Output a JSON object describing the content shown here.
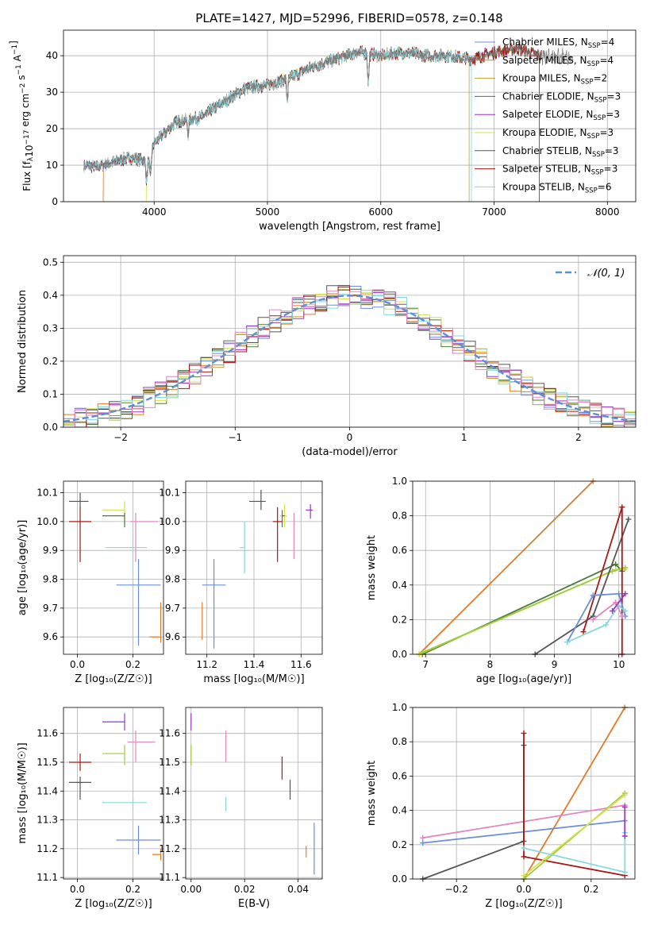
{
  "figure_title": "PLATE=1427, MJD=52996, FIBERID=0578, z=0.148",
  "colors": {
    "Chabrier MILES": "#6a8fd8",
    "Salpeter MILES": "#e07b2a",
    "Kroupa MILES": "#c5a028",
    "Chabrier ELODIE": "#4c7a3a",
    "Salpeter ELODIE": "#9a35c8",
    "Kroupa ELODIE": "#d6e04a",
    "Chabrier STELIB": "#555555",
    "Salpeter STELIB": "#a81818",
    "Kroupa STELIB": "#86d8e0",
    "Kroupa ELODIE alt": "#9ccc3a",
    "Kroupa STELIB alt": "#e088c0"
  },
  "chart_data": [
    {
      "id": "spectrum",
      "type": "line",
      "title": "PLATE=1427, MJD=52996, FIBERID=0578, z=0.148",
      "xlabel": "wavelength [Angstrom, rest frame]",
      "ylabel": "Flux [f_λ10^-17 erg cm^-2 s^-1 A^-1]",
      "xlim": [
        3200,
        8250
      ],
      "ylim": [
        0,
        47
      ],
      "xticks": [
        4000,
        5000,
        6000,
        7000,
        8000
      ],
      "yticks": [
        0,
        10,
        20,
        30,
        40
      ],
      "legend_position": "top-right",
      "legend": [
        {
          "label": "Chabrier MILES, N",
          "sub": "SSP",
          "suffix": "=4",
          "color": "#6a8fd8"
        },
        {
          "label": "Salpeter MILES, N",
          "sub": "SSP",
          "suffix": "=4",
          "color": "#e07b2a"
        },
        {
          "label": "Kroupa MILES, N",
          "sub": "SSP",
          "suffix": "=2",
          "color": "#c5a028"
        },
        {
          "label": "Chabrier ELODIE, N",
          "sub": "SSP",
          "suffix": "=3",
          "color": "#4c7a3a"
        },
        {
          "label": "Salpeter ELODIE, N",
          "sub": "SSP",
          "suffix": "=3",
          "color": "#9a35c8"
        },
        {
          "label": "Kroupa ELODIE, N",
          "sub": "SSP",
          "suffix": "=3",
          "color": "#d6e04a"
        },
        {
          "label": "Chabrier STELIB, N",
          "sub": "SSP",
          "suffix": "=3",
          "color": "#555555"
        },
        {
          "label": "Salpeter STELIB, N",
          "sub": "SSP",
          "suffix": "=3",
          "color": "#a81818"
        },
        {
          "label": "Kroupa STELIB, N",
          "sub": "SSP",
          "suffix": "=6",
          "color": "#86d8e0"
        }
      ],
      "continuum": [
        [
          3380,
          10
        ],
        [
          3500,
          9.5
        ],
        [
          3650,
          11
        ],
        [
          3800,
          12
        ],
        [
          3950,
          11
        ],
        [
          4000,
          16
        ],
        [
          4200,
          22
        ],
        [
          4400,
          23
        ],
        [
          4600,
          27
        ],
        [
          4800,
          31
        ],
        [
          5000,
          32
        ],
        [
          5200,
          34
        ],
        [
          5400,
          37
        ],
        [
          5600,
          39
        ],
        [
          5800,
          41
        ],
        [
          6000,
          40
        ],
        [
          6200,
          41
        ],
        [
          6400,
          40
        ],
        [
          6600,
          40
        ],
        [
          6800,
          39
        ],
        [
          7000,
          41
        ],
        [
          7200,
          42
        ],
        [
          7400,
          40
        ]
      ],
      "absorption_lines": [
        [
          3933,
          5
        ],
        [
          3968,
          6
        ],
        [
          4300,
          4
        ],
        [
          5175,
          6
        ],
        [
          5890,
          8
        ]
      ],
      "model_cutoffs": [
        [
          3550,
          "#e07b2a"
        ],
        [
          3930,
          "#d6e04a"
        ],
        [
          6780,
          "#c5a028"
        ],
        [
          6800,
          "#86d8e0"
        ],
        [
          7400,
          "#a81818"
        ]
      ]
    },
    {
      "id": "residual_hist",
      "type": "step",
      "xlabel": "(data-model)/error",
      "ylabel": "Normed distribution",
      "xlim": [
        -2.5,
        2.5
      ],
      "ylim": [
        0,
        0.52
      ],
      "xticks": [
        -2,
        -1,
        0,
        1,
        2
      ],
      "yticks": [
        0.0,
        0.1,
        0.2,
        0.3,
        0.4,
        0.5
      ],
      "bin_width": 0.1,
      "legend_position": "top-right",
      "legend_label": "𝒩(0, 1)",
      "normal_color": "#5b8fd6",
      "hist_colors": [
        "#6a8fd8",
        "#e07b2a",
        "#c5a028",
        "#4c7a3a",
        "#9a35c8",
        "#d6e04a",
        "#555555",
        "#a81818",
        "#86d8e0",
        "#e088c0"
      ]
    },
    {
      "id": "age_vs_Z",
      "type": "errorbar",
      "xlabel": "Z [log10(Z/Z☉)]",
      "ylabel": "age [log10(age/yr)]",
      "xlim": [
        -0.05,
        0.31
      ],
      "ylim": [
        9.54,
        10.14
      ],
      "xticks": [
        0.0,
        0.2
      ],
      "yticks": [
        9.6,
        9.7,
        9.8,
        9.9,
        10.0,
        10.1
      ],
      "points": [
        {
          "x": 0.01,
          "y": 10.0,
          "xerr": [
            0.04,
            0.04
          ],
          "yerr": [
            0.14,
            0.05
          ],
          "color": "#a81818"
        },
        {
          "x": 0.01,
          "y": 10.07,
          "xerr": [
            0.04,
            0.03
          ],
          "yerr": [
            0.03,
            0.03
          ],
          "color": "#555555"
        },
        {
          "x": 0.17,
          "y": 10.04,
          "xerr": [
            0.08,
            0.0
          ],
          "yerr": [
            0.03,
            0.03
          ],
          "color": "#d6e04a"
        },
        {
          "x": 0.17,
          "y": 10.02,
          "xerr": [
            0.08,
            0.0
          ],
          "yerr": [
            0.04,
            0.01
          ],
          "color": "#4c7a3a"
        },
        {
          "x": 0.21,
          "y": 10.0,
          "xerr": [
            0.02,
            0.08
          ],
          "yerr": [
            0.14,
            0.03
          ],
          "color": "#e088c0"
        },
        {
          "x": 0.2,
          "y": 9.91,
          "xerr": [
            0.1,
            0.05
          ],
          "yerr": [
            0.09,
            0.09
          ],
          "color": "#86d8e0"
        },
        {
          "x": 0.22,
          "y": 9.78,
          "xerr": [
            0.08,
            0.08
          ],
          "yerr": [
            0.21,
            0.09
          ],
          "color": "#6a8fd8"
        },
        {
          "x": 0.3,
          "y": 9.6,
          "xerr": [
            0.04,
            0.0
          ],
          "yerr": [
            0.02,
            0.12
          ],
          "color": "#e07b2a"
        }
      ]
    },
    {
      "id": "age_vs_mass",
      "type": "errorbar",
      "xlabel": "mass [log10(M/M☉)]",
      "ylabel": "",
      "xlim": [
        11.11,
        11.69
      ],
      "ylim": [
        9.54,
        10.14
      ],
      "xticks": [
        11.2,
        11.4,
        11.6
      ],
      "yticks": [
        9.6,
        9.7,
        9.8,
        9.9,
        10.0,
        10.1
      ],
      "points": [
        {
          "x": 11.43,
          "y": 10.07,
          "xerr": [
            0.05,
            0.02
          ],
          "yerr": [
            0.03,
            0.04
          ],
          "color": "#555555"
        },
        {
          "x": 11.5,
          "y": 10.0,
          "xerr": [
            0.02,
            0.02
          ],
          "yerr": [
            0.14,
            0.05
          ],
          "color": "#a81818"
        },
        {
          "x": 11.53,
          "y": 10.02,
          "xerr": [
            0.02,
            0.01
          ],
          "yerr": [
            0.04,
            0.04
          ],
          "color": "#d6e04a"
        },
        {
          "x": 11.52,
          "y": 10.02,
          "xerr": [
            0.0,
            0.01
          ],
          "yerr": [
            0.04,
            0.02
          ],
          "color": "#4c7a3a"
        },
        {
          "x": 11.64,
          "y": 10.04,
          "xerr": [
            0.02,
            0.01
          ],
          "yerr": [
            0.03,
            0.02
          ],
          "color": "#9a35c8"
        },
        {
          "x": 11.57,
          "y": 9.99,
          "xerr": [
            0.0,
            0.0
          ],
          "yerr": [
            0.12,
            0.04
          ],
          "color": "#e088c0"
        },
        {
          "x": 11.36,
          "y": 9.91,
          "xerr": [
            0.02,
            0.0
          ],
          "yerr": [
            0.09,
            0.09
          ],
          "color": "#86d8e0"
        },
        {
          "x": 11.23,
          "y": 9.78,
          "xerr": [
            0.05,
            0.05
          ],
          "yerr": [
            0.22,
            0.09
          ],
          "color": "#6a8fd8"
        },
        {
          "x": 11.18,
          "y": 9.6,
          "xerr": [
            0.0,
            0.0
          ],
          "yerr": [
            0.01,
            0.12
          ],
          "color": "#e07b2a"
        }
      ]
    },
    {
      "id": "weight_vs_age",
      "type": "line",
      "xlabel": "age [log10(age/yr)]",
      "ylabel": "mass weight",
      "xlim": [
        6.8,
        10.25
      ],
      "ylim": [
        0,
        1.0
      ],
      "xticks": [
        7,
        8,
        9,
        10
      ],
      "yticks": [
        0.0,
        0.2,
        0.4,
        0.6,
        0.8,
        1.0
      ],
      "series": [
        {
          "color": "#e07b2a",
          "points": [
            [
              6.9,
              0.0
            ],
            [
              9.6,
              1.0
            ]
          ]
        },
        {
          "color": "#4c7a3a",
          "points": [
            [
              6.95,
              0.0
            ],
            [
              9.95,
              0.52
            ],
            [
              10.05,
              0.48
            ]
          ]
        },
        {
          "color": "#d6e04a",
          "points": [
            [
              6.9,
              0.0
            ],
            [
              9.95,
              0.49
            ],
            [
              10.1,
              0.49
            ]
          ]
        },
        {
          "color": "#9ccc3a",
          "points": [
            [
              6.95,
              0.01
            ],
            [
              9.9,
              0.48
            ],
            [
              10.1,
              0.5
            ]
          ]
        },
        {
          "color": "#555555",
          "points": [
            [
              8.7,
              0.0
            ],
            [
              9.6,
              0.22
            ],
            [
              10.15,
              0.78
            ]
          ]
        },
        {
          "color": "#a81818",
          "points": [
            [
              9.45,
              0.13
            ],
            [
              10.05,
              0.85
            ],
            [
              10.05,
              0.0
            ]
          ]
        },
        {
          "color": "#6a8fd8",
          "points": [
            [
              9.2,
              0.07
            ],
            [
              9.6,
              0.34
            ],
            [
              10.0,
              0.35
            ],
            [
              10.1,
              0.22
            ]
          ]
        },
        {
          "color": "#86d8e0",
          "points": [
            [
              9.2,
              0.07
            ],
            [
              9.8,
              0.17
            ],
            [
              10.0,
              0.28
            ],
            [
              10.1,
              0.25
            ]
          ]
        },
        {
          "color": "#e088c0",
          "points": [
            [
              9.6,
              0.2
            ],
            [
              9.95,
              0.3
            ],
            [
              10.05,
              0.22
            ]
          ]
        },
        {
          "color": "#9a35c8",
          "points": [
            [
              9.9,
              0.25
            ],
            [
              10.1,
              0.35
            ]
          ]
        }
      ]
    },
    {
      "id": "mass_vs_Z",
      "type": "errorbar",
      "xlabel": "Z [log10(Z/Z☉)]",
      "ylabel": "mass [log10(M/M☉)]",
      "xlim": [
        -0.05,
        0.31
      ],
      "ylim": [
        11.095,
        11.69
      ],
      "xticks": [
        0.0,
        0.2
      ],
      "yticks": [
        11.1,
        11.2,
        11.3,
        11.4,
        11.5,
        11.6
      ],
      "points": [
        {
          "x": 0.01,
          "y": 11.5,
          "xerr": [
            0.04,
            0.04
          ],
          "yerr": [
            0.03,
            0.03
          ],
          "color": "#a81818"
        },
        {
          "x": 0.01,
          "y": 11.43,
          "xerr": [
            0.04,
            0.04
          ],
          "yerr": [
            0.06,
            0.02
          ],
          "color": "#555555"
        },
        {
          "x": 0.17,
          "y": 11.64,
          "xerr": [
            0.08,
            0.0
          ],
          "yerr": [
            0.03,
            0.03
          ],
          "color": "#9a35c8"
        },
        {
          "x": 0.17,
          "y": 11.53,
          "xerr": [
            0.08,
            0.0
          ],
          "yerr": [
            0.04,
            0.03
          ],
          "color": "#9ccc3a"
        },
        {
          "x": 0.21,
          "y": 11.57,
          "xerr": [
            0.03,
            0.07
          ],
          "yerr": [
            0.07,
            0.04
          ],
          "color": "#e088c0"
        },
        {
          "x": 0.2,
          "y": 11.36,
          "xerr": [
            0.11,
            0.05
          ],
          "yerr": [
            0.03,
            0.02
          ],
          "color": "#86d8e0"
        },
        {
          "x": 0.22,
          "y": 11.23,
          "xerr": [
            0.08,
            0.08
          ],
          "yerr": [
            0.05,
            0.05
          ],
          "color": "#6a8fd8"
        },
        {
          "x": 0.3,
          "y": 11.18,
          "xerr": [
            0.03,
            0.0
          ],
          "yerr": [
            0.02,
            0.02
          ],
          "color": "#e07b2a"
        }
      ]
    },
    {
      "id": "mass_vs_ebv",
      "type": "errorbar",
      "xlabel": "E(B-V)",
      "ylabel": "",
      "xlim": [
        -0.002,
        0.049
      ],
      "ylim": [
        11.095,
        11.69
      ],
      "xticks": [
        0.0,
        0.02,
        0.04
      ],
      "yticks": [
        11.1,
        11.2,
        11.3,
        11.4,
        11.5,
        11.6
      ],
      "points": [
        {
          "x": 0.0,
          "y": 11.64,
          "xerr": [
            0,
            0
          ],
          "yerr": [
            0.03,
            0.03
          ],
          "color": "#9a35c8"
        },
        {
          "x": 0.0,
          "y": 11.53,
          "xerr": [
            0,
            0
          ],
          "yerr": [
            0.04,
            0.03
          ],
          "color": "#9ccc3a"
        },
        {
          "x": 0.013,
          "y": 11.57,
          "xerr": [
            0,
            0
          ],
          "yerr": [
            0.07,
            0.04
          ],
          "color": "#e088c0"
        },
        {
          "x": 0.013,
          "y": 11.36,
          "xerr": [
            0,
            0
          ],
          "yerr": [
            0.03,
            0.02
          ],
          "color": "#86d8e0"
        },
        {
          "x": 0.034,
          "y": 11.48,
          "xerr": [
            0,
            0
          ],
          "yerr": [
            0.04,
            0.04
          ],
          "color": "#a81818"
        },
        {
          "x": 0.037,
          "y": 11.41,
          "xerr": [
            0,
            0
          ],
          "yerr": [
            0.04,
            0.03
          ],
          "color": "#555555"
        },
        {
          "x": 0.046,
          "y": 11.2,
          "xerr": [
            0,
            0
          ],
          "yerr": [
            0.09,
            0.09
          ],
          "color": "#6a8fd8"
        },
        {
          "x": 0.043,
          "y": 11.19,
          "xerr": [
            0,
            0
          ],
          "yerr": [
            0.02,
            0.02
          ],
          "color": "#e07b2a"
        }
      ]
    },
    {
      "id": "weight_vs_Z",
      "type": "line",
      "xlabel": "Z [log10(Z/Z☉)]",
      "ylabel": "mass weight",
      "xlim": [
        -0.33,
        0.33
      ],
      "ylim": [
        0,
        1.0
      ],
      "xticks": [
        -0.2,
        0.0,
        0.2
      ],
      "yticks": [
        0.0,
        0.2,
        0.4,
        0.6,
        0.8,
        1.0
      ],
      "series": [
        {
          "color": "#e07b2a",
          "points": [
            [
              0.0,
              0.0
            ],
            [
              0.3,
              1.0
            ]
          ]
        },
        {
          "color": "#e088c0",
          "points": [
            [
              -0.3,
              0.24
            ],
            [
              0.3,
              0.43
            ]
          ]
        },
        {
          "color": "#6a8fd8",
          "points": [
            [
              -0.3,
              0.21
            ],
            [
              0.3,
              0.34
            ]
          ]
        },
        {
          "color": "#555555",
          "points": [
            [
              -0.3,
              0.0
            ],
            [
              0.0,
              0.22
            ],
            [
              0.0,
              0.78
            ]
          ]
        },
        {
          "color": "#a81818",
          "points": [
            [
              0.0,
              0.85
            ],
            [
              0.0,
              0.13
            ],
            [
              0.3,
              0.02
            ]
          ]
        },
        {
          "color": "#9ccc3a",
          "points": [
            [
              0.0,
              0.0
            ],
            [
              0.3,
              0.5
            ]
          ]
        },
        {
          "color": "#d6e04a",
          "points": [
            [
              0.0,
              0.02
            ],
            [
              0.3,
              0.49
            ]
          ]
        },
        {
          "color": "#86d8e0",
          "points": [
            [
              0.0,
              0.18
            ],
            [
              0.3,
              0.04
            ],
            [
              0.3,
              0.27
            ]
          ]
        },
        {
          "color": "#9a35c8",
          "points": [
            [
              0.3,
              0.25
            ],
            [
              0.3,
              0.42
            ]
          ]
        }
      ]
    }
  ]
}
